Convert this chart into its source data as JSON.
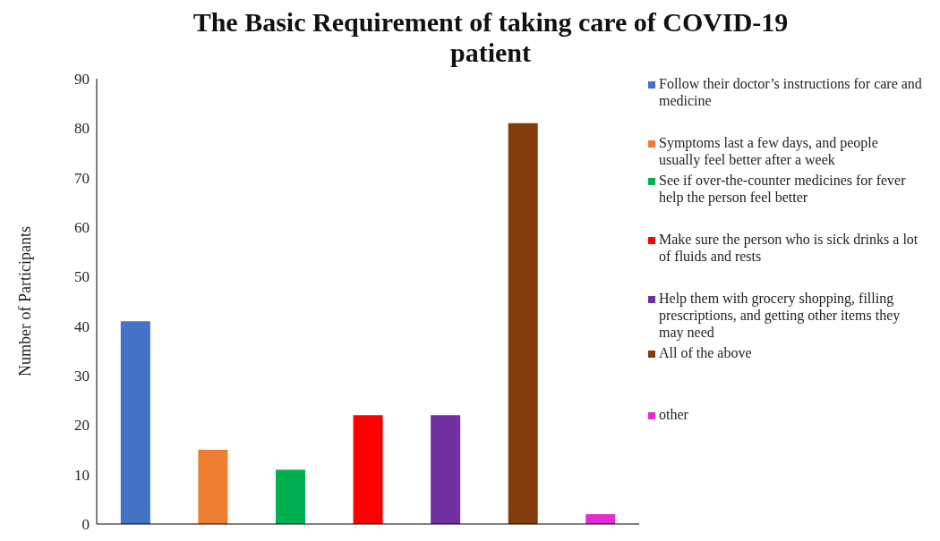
{
  "chart_data": {
    "type": "bar",
    "title": "The Basic Requirement of taking care of COVID-19 patient",
    "ylabel": "Number of Participants",
    "categories": [
      null,
      null,
      null,
      null,
      null,
      null,
      null
    ],
    "series": [
      {
        "name": "Follow their doctor’s instructions for care and medicine",
        "color": "#4472c4",
        "values": [
          41,
          null,
          null,
          null,
          null,
          null,
          null
        ]
      },
      {
        "name": "Symptoms last a few days, and people usually feel better after a week",
        "color": "#ed7d31",
        "values": [
          null,
          15,
          null,
          null,
          null,
          null,
          null
        ]
      },
      {
        "name": "See if over-the-counter medicines for fever help the person feel better",
        "color": "#00b050",
        "values": [
          null,
          null,
          11,
          null,
          null,
          null,
          null
        ]
      },
      {
        "name": "Make sure the person who is sick drinks a lot of fluids and rests",
        "color": "#ff0000",
        "values": [
          null,
          null,
          null,
          22,
          null,
          null,
          null
        ]
      },
      {
        "name": "Help them with grocery shopping, filling prescriptions, and getting other items they may need",
        "color": "#7030a0",
        "values": [
          null,
          null,
          null,
          null,
          22,
          null,
          null
        ]
      },
      {
        "name": "All of the above",
        "color": "#843c0c",
        "values": [
          null,
          null,
          null,
          null,
          null,
          81,
          null
        ]
      },
      {
        "name": "other",
        "color": "#e22bd0",
        "values": [
          null,
          null,
          null,
          null,
          null,
          null,
          2
        ]
      }
    ],
    "ylim": [
      0,
      90
    ],
    "yticks": [
      0,
      10,
      20,
      30,
      40,
      50,
      60,
      70,
      80,
      90
    ],
    "tick_labels": "y",
    "legend": "right"
  }
}
